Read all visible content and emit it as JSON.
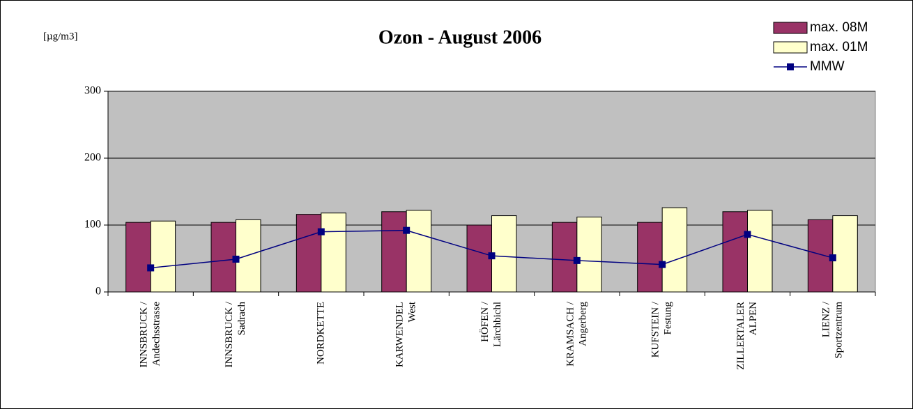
{
  "chart_data": {
    "type": "bar",
    "title": "Ozon - August 2006",
    "y_label": "[µg/m3]",
    "categories": [
      [
        "INNSBRUCK /",
        "Andechsstrasse"
      ],
      [
        "INNSBRUCK /",
        "Sadrach"
      ],
      [
        "NORDKETTE"
      ],
      [
        "KARWENDEL",
        "West"
      ],
      [
        "HÖFEN /",
        "Lärchbichl"
      ],
      [
        "KRAMSACH /",
        "Angerberg"
      ],
      [
        "KUFSTEIN /",
        "Festung"
      ],
      [
        "ZILLERTALER",
        "ALPEN"
      ],
      [
        "LIENZ /",
        "Sportzentrum"
      ]
    ],
    "series": [
      {
        "name": "max. 08M",
        "type": "bar",
        "color": "#993366",
        "values": [
          104,
          104,
          116,
          120,
          100,
          104,
          104,
          120,
          108
        ]
      },
      {
        "name": "max. 01M",
        "type": "bar",
        "color": "#ffffcc",
        "values": [
          106,
          108,
          118,
          122,
          114,
          112,
          126,
          122,
          114
        ]
      },
      {
        "name": "MMW",
        "type": "line",
        "color": "#000080",
        "values": [
          36,
          49,
          90,
          92,
          54,
          47,
          41,
          86,
          51
        ]
      }
    ],
    "ylim": [
      0,
      300
    ],
    "yticks": [
      0,
      100,
      200,
      300
    ],
    "grid": true,
    "legend": "top-right"
  }
}
